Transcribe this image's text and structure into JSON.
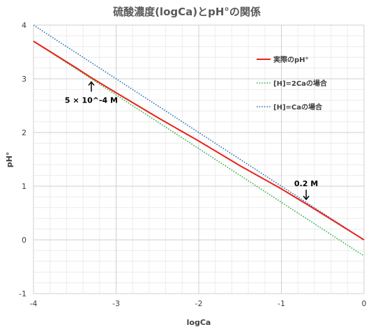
{
  "chart_data": {
    "type": "line",
    "title": "硫酸濃度(logCa)とpH°の関係",
    "xlabel": "logCa",
    "ylabel": "pH°",
    "xlim": [
      -4,
      0
    ],
    "ylim": [
      -1,
      4
    ],
    "xticks": [
      -4,
      -3,
      -2,
      -1,
      0
    ],
    "yticks": [
      -1,
      0,
      1,
      2,
      3,
      4
    ],
    "grid": true,
    "legend_position": "right",
    "series": [
      {
        "name": "実際のpH°",
        "color": "#e8231a",
        "style": "solid",
        "x": [
          -4,
          -3.5,
          -3.3,
          -3,
          -2.5,
          -2,
          -1.5,
          -1,
          -0.7,
          -0.5,
          -0.25,
          0
        ],
        "y": [
          3.7,
          3.22,
          3.02,
          2.74,
          2.28,
          1.84,
          1.38,
          0.95,
          0.67,
          0.48,
          0.24,
          0.0
        ]
      },
      {
        "name": "[H]=2Caの場合",
        "color": "#33b34d",
        "style": "dotted",
        "x": [
          -4,
          0
        ],
        "y": [
          3.7,
          -0.3
        ]
      },
      {
        "name": "[H]=Caの場合",
        "color": "#2e75b6",
        "style": "dotted",
        "x": [
          -4,
          0
        ],
        "y": [
          4.0,
          0.0
        ]
      }
    ],
    "annotations": [
      {
        "text": "5 × 10^-4 M",
        "x": -3.3,
        "y": 3.02,
        "arrow": "up"
      },
      {
        "text": "0.2 M",
        "x": -0.7,
        "y": 0.7,
        "arrow": "down"
      }
    ]
  }
}
